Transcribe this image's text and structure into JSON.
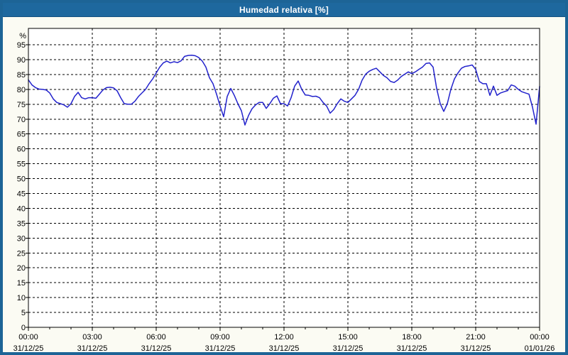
{
  "window": {
    "title": "Humedad relativa [%]"
  },
  "colors": {
    "titlebar": "#1e689e",
    "frame": "#1d6496",
    "canvas_bg": "#fbfbf3",
    "plot_bg": "#ffffff",
    "line": "#2222cc",
    "grid": "#000000",
    "axis": "#000000",
    "text": "#000000",
    "title_text": "#ffffff"
  },
  "chart_data": {
    "type": "line",
    "title": "Humedad relativa [%]",
    "ylabel": "%",
    "ylim": [
      0,
      100.5
    ],
    "yticks": [
      0,
      5,
      10,
      15,
      20,
      25,
      30,
      35,
      40,
      45,
      50,
      55,
      60,
      65,
      70,
      75,
      80,
      85,
      90,
      95
    ],
    "grid": true,
    "legend": "none",
    "x_hours_span": 24,
    "x_minor_tick_every_hours": 1,
    "x_major_ticks": [
      {
        "hour": 0,
        "time": "00:00",
        "date": "31/12/25"
      },
      {
        "hour": 3,
        "time": "03:00",
        "date": "31/12/25"
      },
      {
        "hour": 6,
        "time": "06:00",
        "date": "31/12/25"
      },
      {
        "hour": 9,
        "time": "09:00",
        "date": "31/12/25"
      },
      {
        "hour": 12,
        "time": "12:00",
        "date": "31/12/25"
      },
      {
        "hour": 15,
        "time": "15:00",
        "date": "31/12/25"
      },
      {
        "hour": 18,
        "time": "18:00",
        "date": "31/12/25"
      },
      {
        "hour": 21,
        "time": "21:00",
        "date": "31/12/25"
      },
      {
        "hour": 24,
        "time": "00:00",
        "date": "01/01/26"
      }
    ],
    "series_name": "Humedad relativa",
    "sample_interval_minutes": 10,
    "values": [
      83.2,
      81.5,
      80.6,
      80.1,
      80.0,
      79.8,
      78.8,
      76.8,
      75.6,
      75.2,
      74.8,
      74.0,
      75.2,
      77.6,
      79.0,
      77.2,
      76.8,
      77.2,
      77.2,
      77.0,
      78.4,
      79.8,
      80.6,
      80.7,
      80.5,
      79.5,
      77.2,
      75.2,
      75.0,
      75.0,
      76.0,
      77.6,
      78.8,
      80.0,
      81.9,
      83.5,
      85.5,
      87.5,
      88.9,
      89.5,
      88.9,
      89.3,
      89.0,
      89.6,
      91.1,
      91.4,
      91.5,
      91.3,
      90.7,
      89.5,
      87.5,
      83.9,
      81.9,
      78.4,
      74.4,
      70.8,
      77.6,
      80.3,
      78.0,
      75.2,
      72.8,
      68.0,
      71.2,
      73.5,
      74.8,
      75.6,
      75.6,
      73.6,
      75.2,
      77.0,
      77.8,
      75.2,
      75.2,
      74.4,
      77.2,
      81.1,
      82.8,
      80.0,
      78.1,
      78.0,
      77.6,
      77.7,
      77.2,
      75.6,
      74.4,
      72.0,
      73.2,
      75.2,
      76.8,
      76.0,
      75.6,
      76.8,
      78.0,
      80.0,
      83.1,
      85.1,
      86.1,
      86.7,
      87.1,
      85.9,
      84.7,
      83.9,
      82.7,
      82.3,
      83.1,
      84.3,
      85.1,
      85.9,
      85.3,
      85.9,
      86.7,
      87.5,
      88.7,
      88.9,
      87.5,
      80.3,
      75.2,
      72.6,
      75.2,
      80.0,
      83.5,
      85.5,
      87.1,
      87.7,
      87.9,
      88.2,
      86.7,
      82.7,
      81.9,
      81.9,
      78.0,
      81.1,
      78.0,
      78.8,
      79.2,
      79.6,
      81.5,
      81.1,
      80.0,
      79.2,
      78.8,
      78.4,
      74.0,
      68.3,
      81.0
    ]
  }
}
